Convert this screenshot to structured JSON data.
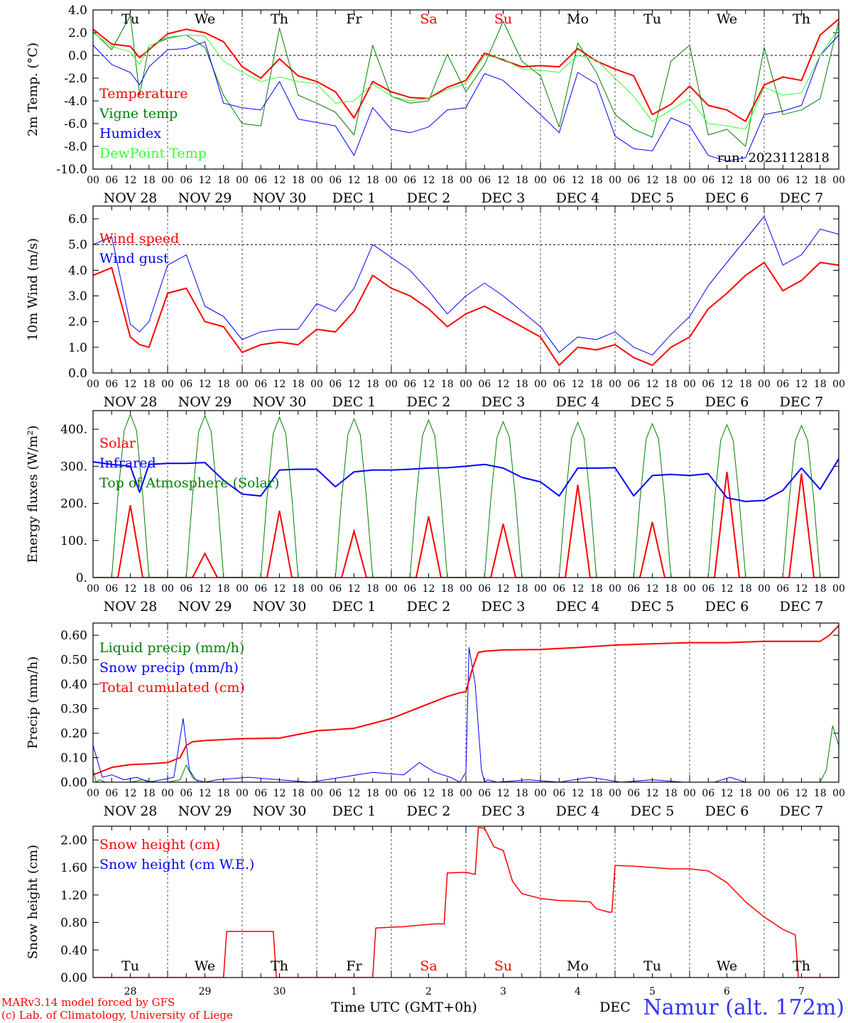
{
  "days": [
    "Tu",
    "We",
    "Th",
    "Fr",
    "Sa",
    "Su",
    "Mo",
    "Tu",
    "We",
    "Th"
  ],
  "dates": [
    "NOV 28",
    "NOV 29",
    "NOV 30",
    "DEC  1",
    "DEC  2",
    "DEC  3",
    "DEC  4",
    "DEC  5",
    "DEC  6",
    "DEC  7"
  ],
  "hours": [
    "00",
    "06",
    "12",
    "18"
  ],
  "last_hour": "00",
  "bottom_dates": [
    "28",
    "29",
    "30",
    "1",
    "2",
    "3",
    "4",
    "5",
    "6",
    "7"
  ],
  "weekend_color": "#ff0000",
  "weekend_days": [
    4,
    5
  ],
  "footer": {
    "model": "MARv3.14 model forced by GFS",
    "lab": "(c) Lab. of Climatology, University of Liege",
    "xlabel": "Time UTC (GMT+0h)",
    "month": "DEC",
    "station": "Namur (alt. 172m)"
  },
  "chart_data": [
    {
      "type": "line",
      "ylabel": "2m Temp. (°C)",
      "ylim": [
        -10,
        4
      ],
      "yticks": [
        "4.0",
        "2.0",
        "0.0",
        "-2.0",
        "-4.0",
        "-6.0",
        "-8.0",
        "-10.0"
      ],
      "zero_line": 0,
      "annotation": "run: 2023112818",
      "series": [
        {
          "name": "Temperature",
          "color": "#ff0000",
          "width": 2,
          "x": [
            0,
            6,
            12,
            15,
            18,
            24,
            30,
            36,
            42,
            48,
            54,
            60,
            66,
            72,
            78,
            84,
            90,
            96,
            102,
            108,
            114,
            120,
            126,
            132,
            138,
            144,
            150,
            156,
            162,
            168,
            174,
            180,
            186,
            192,
            198,
            204,
            210,
            216,
            222,
            228,
            234,
            240
          ],
          "values": [
            2.3,
            1.0,
            0.8,
            -0.2,
            0.5,
            1.9,
            2.3,
            2.0,
            1.2,
            -1.0,
            -2.0,
            -0.3,
            -1.8,
            -2.3,
            -3.2,
            -5.5,
            -2.3,
            -3.2,
            -3.7,
            -3.8,
            -2.8,
            -2.2,
            0.2,
            -0.4,
            -1.0,
            -0.9,
            -1.0,
            0.6,
            -0.5,
            -1.2,
            -1.8,
            -5.2,
            -4.3,
            -2.7,
            -4.4,
            -4.8,
            -5.8,
            -2.6,
            -1.9,
            -2.2,
            1.8,
            3.2
          ]
        },
        {
          "name": "Vigne temp",
          "color": "#008000",
          "width": 1,
          "x": [
            0,
            6,
            12,
            15,
            18,
            24,
            30,
            36,
            42,
            48,
            54,
            60,
            66,
            72,
            78,
            84,
            90,
            96,
            102,
            108,
            114,
            120,
            126,
            132,
            138,
            144,
            150,
            156,
            162,
            168,
            174,
            180,
            186,
            192,
            198,
            204,
            210,
            216,
            222,
            228,
            234,
            240
          ],
          "values": [
            2.1,
            0.5,
            3.5,
            -3.5,
            0.8,
            1.5,
            1.8,
            0.7,
            -3.5,
            -6.0,
            -6.2,
            2.4,
            -3.5,
            -4.2,
            -5.0,
            -7.0,
            0.9,
            -3.6,
            -4.2,
            -4.0,
            0.1,
            -3.2,
            -0.8,
            3.0,
            -0.5,
            -1.8,
            -6.3,
            1.1,
            -1.5,
            -5.2,
            -6.5,
            -7.2,
            -0.5,
            0.9,
            -7.0,
            -6.5,
            -8.0,
            0.7,
            -5.2,
            -4.8,
            -3.8,
            3.0
          ]
        },
        {
          "name": "Humidex",
          "color": "#0000ff",
          "width": 1,
          "x": [
            0,
            6,
            12,
            15,
            18,
            24,
            30,
            36,
            42,
            48,
            54,
            60,
            66,
            72,
            78,
            84,
            90,
            96,
            102,
            108,
            114,
            120,
            126,
            132,
            138,
            144,
            150,
            156,
            162,
            168,
            174,
            180,
            186,
            192,
            198,
            204,
            210,
            216,
            222,
            228,
            234,
            240
          ],
          "values": [
            0.9,
            -0.8,
            -1.5,
            -2.6,
            -1.0,
            0.5,
            0.6,
            1.2,
            -4.2,
            -4.6,
            -4.8,
            -2.3,
            -5.6,
            -5.9,
            -6.2,
            -8.8,
            -4.6,
            -6.5,
            -6.8,
            -6.3,
            -4.8,
            -4.6,
            -1.6,
            -2.2,
            -3.7,
            -5.2,
            -6.8,
            -1.5,
            -2.5,
            -7.1,
            -8.2,
            -8.4,
            -5.5,
            -6.2,
            -8.8,
            -9.3,
            -9.0,
            -5.2,
            -4.9,
            -4.4,
            0.0,
            1.8
          ]
        },
        {
          "name": "DewPoint Temp",
          "color": "#33ff33",
          "width": 1,
          "x": [
            0,
            6,
            12,
            15,
            18,
            24,
            30,
            36,
            42,
            48,
            54,
            60,
            66,
            72,
            78,
            84,
            90,
            96,
            102,
            108,
            114,
            120,
            126,
            132,
            138,
            144,
            150,
            156,
            162,
            168,
            174,
            180,
            186,
            192,
            198,
            204,
            210,
            216,
            222,
            228,
            234,
            240
          ],
          "values": [
            2.0,
            0.8,
            0.3,
            -0.8,
            0.8,
            1.6,
            1.8,
            1.7,
            -0.5,
            -1.5,
            -2.3,
            -1.9,
            -2.3,
            -2.5,
            -4.2,
            -4.0,
            -2.5,
            -3.6,
            -4.0,
            -3.8,
            -3.0,
            -2.5,
            0.0,
            -0.3,
            -1.2,
            -1.3,
            -1.5,
            0.0,
            -0.4,
            -2.0,
            -3.6,
            -5.8,
            -4.8,
            -3.8,
            -6.0,
            -6.2,
            -6.5,
            -2.8,
            -3.5,
            -3.3,
            0.0,
            2.4
          ]
        }
      ]
    },
    {
      "type": "line",
      "ylabel": "10m Wind (m/s)",
      "ylim": [
        0,
        6.5
      ],
      "yticks": [
        "0.0",
        "1.0",
        "2.0",
        "3.0",
        "4.0",
        "5.0",
        "6.0"
      ],
      "ref_line": 5,
      "series": [
        {
          "name": "Wind speed",
          "color": "#ff0000",
          "width": 2,
          "x": [
            0,
            6,
            12,
            15,
            18,
            24,
            30,
            36,
            42,
            48,
            54,
            60,
            66,
            72,
            78,
            84,
            90,
            96,
            102,
            108,
            114,
            120,
            126,
            132,
            138,
            144,
            150,
            156,
            162,
            168,
            174,
            180,
            186,
            192,
            198,
            204,
            210,
            216,
            222,
            228,
            234,
            240
          ],
          "values": [
            3.8,
            4.1,
            1.4,
            1.1,
            1.0,
            3.1,
            3.3,
            2.0,
            1.8,
            0.8,
            1.1,
            1.2,
            1.1,
            1.7,
            1.6,
            2.4,
            3.8,
            3.3,
            3.0,
            2.5,
            1.8,
            2.3,
            2.6,
            2.2,
            1.8,
            1.4,
            0.3,
            1.0,
            0.9,
            1.1,
            0.6,
            0.3,
            1.0,
            1.4,
            2.5,
            3.1,
            3.8,
            4.3,
            3.2,
            3.6,
            4.3,
            4.2
          ]
        },
        {
          "name": "Wind gust",
          "color": "#0000ff",
          "width": 1,
          "x": [
            0,
            6,
            12,
            15,
            18,
            24,
            30,
            36,
            42,
            48,
            54,
            60,
            66,
            72,
            78,
            84,
            90,
            96,
            102,
            108,
            114,
            120,
            126,
            132,
            138,
            144,
            150,
            156,
            162,
            168,
            174,
            180,
            186,
            192,
            198,
            204,
            210,
            216,
            222,
            228,
            234,
            240
          ],
          "values": [
            5.0,
            5.3,
            1.9,
            1.6,
            2.0,
            4.2,
            4.6,
            2.6,
            2.2,
            1.3,
            1.6,
            1.7,
            1.7,
            2.7,
            2.4,
            3.3,
            5.0,
            4.5,
            4.0,
            3.2,
            2.3,
            3.0,
            3.5,
            3.0,
            2.4,
            1.8,
            0.8,
            1.4,
            1.3,
            1.6,
            1.0,
            0.7,
            1.5,
            2.2,
            3.4,
            4.3,
            5.2,
            6.1,
            4.2,
            4.6,
            5.6,
            5.4
          ]
        }
      ]
    },
    {
      "type": "line",
      "ylabel": "Energy fluxes (W/m²)",
      "ylim": [
        0,
        450
      ],
      "yticks": [
        "0.",
        "100.",
        "200.",
        "300.",
        "400."
      ],
      "peaks": {
        "hours": [
          12,
          36,
          60,
          84,
          108,
          132,
          156,
          180,
          204,
          228
        ],
        "toa": [
          440,
          437,
          432,
          428,
          425,
          420,
          418,
          415,
          412,
          410
        ],
        "solar": [
          195,
          65,
          180,
          125,
          165,
          145,
          250,
          150,
          285,
          280
        ]
      },
      "series": [
        {
          "name": "Solar",
          "color": "#ff0000",
          "width": 2
        },
        {
          "name": "Infrared",
          "color": "#0000ff",
          "width": 2,
          "x": [
            0,
            6,
            12,
            15,
            18,
            24,
            30,
            36,
            42,
            48,
            54,
            60,
            66,
            72,
            78,
            84,
            90,
            96,
            102,
            108,
            114,
            120,
            126,
            132,
            138,
            144,
            150,
            156,
            162,
            168,
            174,
            180,
            186,
            192,
            198,
            204,
            210,
            216,
            222,
            228,
            234,
            240
          ],
          "values": [
            312,
            305,
            300,
            230,
            305,
            308,
            308,
            310,
            262,
            225,
            220,
            290,
            292,
            292,
            245,
            285,
            290,
            290,
            292,
            295,
            296,
            300,
            305,
            295,
            270,
            258,
            220,
            295,
            295,
            296,
            220,
            275,
            278,
            275,
            280,
            215,
            205,
            208,
            235,
            295,
            238,
            320
          ]
        },
        {
          "name": "Top of Atmosphere (Solar)",
          "color": "#008000",
          "width": 1
        }
      ]
    },
    {
      "type": "line",
      "ylabel": "Precip (mm/h)",
      "ylim": [
        0,
        0.65
      ],
      "yticks": [
        "0.00",
        "0.10",
        "0.20",
        "0.30",
        "0.40",
        "0.50",
        "0.60"
      ],
      "series": [
        {
          "name": "Liquid precip (mm/h)",
          "color": "#008000",
          "width": 1,
          "x": [
            0,
            1,
            2,
            4,
            8,
            12,
            16,
            20,
            24,
            28,
            30,
            32,
            34,
            36,
            40,
            60,
            120,
            200,
            228,
            230,
            234,
            236,
            238,
            240
          ],
          "values": [
            0.05,
            0.0,
            0.01,
            0.0,
            0.0,
            0.0,
            0.01,
            0.0,
            0.0,
            0.01,
            0.07,
            0.02,
            0.0,
            0.0,
            0.0,
            0.0,
            0.0,
            0.0,
            0.0,
            0.0,
            0.0,
            0.05,
            0.23,
            0.15
          ]
        },
        {
          "name": "Snow precip (mm/h)",
          "color": "#0000ff",
          "width": 1,
          "x": [
            0,
            3,
            6,
            10,
            14,
            18,
            22,
            26,
            29,
            31,
            33,
            36,
            40,
            50,
            60,
            70,
            80,
            90,
            100,
            105,
            110,
            115,
            118,
            120,
            121,
            123,
            125,
            126,
            127,
            130,
            140,
            150,
            160,
            170,
            180,
            190,
            200,
            205,
            210,
            220,
            240
          ],
          "values": [
            0.15,
            0.02,
            0.03,
            0.01,
            0.02,
            0.0,
            0.01,
            0.02,
            0.26,
            0.05,
            0.01,
            0.0,
            0.01,
            0.02,
            0.01,
            0.0,
            0.02,
            0.04,
            0.03,
            0.08,
            0.04,
            0.02,
            0.0,
            0.04,
            0.55,
            0.4,
            0.05,
            0.0,
            0.01,
            0.0,
            0.01,
            0.0,
            0.02,
            0.0,
            0.01,
            0.0,
            0.0,
            0.02,
            0.0,
            0.0,
            0.0
          ]
        },
        {
          "name": "Total cumulated (cm)",
          "color": "#ff0000",
          "width": 2,
          "x": [
            0,
            6,
            12,
            18,
            24,
            28,
            30,
            32,
            36,
            48,
            60,
            72,
            84,
            96,
            108,
            114,
            118,
            120,
            122,
            124,
            126,
            132,
            144,
            156,
            168,
            180,
            192,
            204,
            216,
            228,
            234,
            237,
            240
          ],
          "values": [
            0.03,
            0.06,
            0.072,
            0.075,
            0.08,
            0.1,
            0.15,
            0.165,
            0.17,
            0.178,
            0.18,
            0.21,
            0.22,
            0.26,
            0.32,
            0.35,
            0.365,
            0.37,
            0.46,
            0.53,
            0.535,
            0.54,
            0.542,
            0.55,
            0.56,
            0.565,
            0.57,
            0.57,
            0.575,
            0.575,
            0.575,
            0.6,
            0.64
          ]
        }
      ]
    },
    {
      "type": "line",
      "ylabel": "Snow height (cm)",
      "ylim": [
        0,
        2.2
      ],
      "yticks": [
        "0.00",
        "0.40",
        "0.80",
        "1.20",
        "1.60",
        "2.00"
      ],
      "series": [
        {
          "name": "Snow height (cm)",
          "color": "#ff0000",
          "width": 1.5,
          "x": [
            0,
            42,
            43,
            58,
            59,
            90,
            91,
            100,
            105,
            110,
            113,
            114,
            120,
            123,
            124,
            126,
            129,
            132,
            135,
            138,
            144,
            150,
            156,
            160,
            162,
            166,
            167,
            168,
            174,
            180,
            186,
            192,
            198,
            204,
            210,
            216,
            222,
            226,
            227,
            240
          ],
          "values": [
            0,
            0,
            0.67,
            0.67,
            0,
            0,
            0.72,
            0.74,
            0.76,
            0.78,
            0.78,
            1.52,
            1.53,
            1.5,
            2.18,
            2.17,
            1.9,
            1.85,
            1.4,
            1.22,
            1.15,
            1.12,
            1.11,
            1.1,
            1.0,
            0.95,
            0.95,
            1.63,
            1.62,
            1.6,
            1.58,
            1.58,
            1.55,
            1.38,
            1.1,
            0.88,
            0.7,
            0.62,
            0,
            0
          ]
        },
        {
          "name": "Snow height (cm W.E.)",
          "color": "#0000ff",
          "width": 1,
          "x": [
            0,
            240
          ],
          "values": [
            0,
            0
          ]
        }
      ]
    }
  ]
}
